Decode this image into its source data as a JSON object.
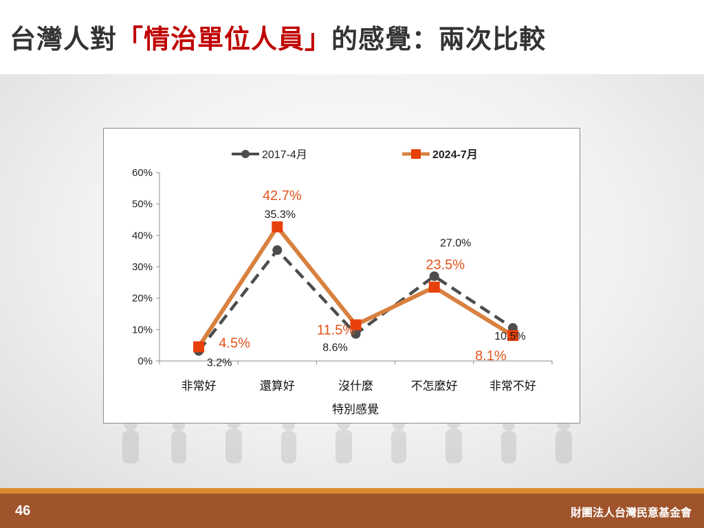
{
  "slide": {
    "title_prefix": "台灣人對",
    "title_highlight": "「情治單位人員」",
    "title_suffix": "的感覺：兩次比較",
    "page_number": "46",
    "organization": "財團法人台灣民意基金會"
  },
  "colors": {
    "title_highlight": "#c00000",
    "series_2017": "#4d4d4d",
    "series_2024_line": "#d8813f",
    "series_2024_marker": "#e8400c",
    "footer": "#a0542c",
    "footer_stripe": "#d98a2b"
  },
  "chart_data": {
    "type": "line",
    "categories": [
      "非常好",
      "還算好",
      "沒什麼",
      "不怎麼好",
      "非常不好"
    ],
    "xlabel": "特別感覺",
    "ylabel": "",
    "ylim": [
      0,
      60
    ],
    "yticks": [
      "0%",
      "10%",
      "20%",
      "30%",
      "40%",
      "50%",
      "60%"
    ],
    "legend_position": "top",
    "grid": false,
    "series": [
      {
        "name": "2017-4月",
        "values": [
          3.2,
          35.3,
          8.6,
          27.0,
          10.5
        ],
        "labels": [
          "3.2%",
          "35.3%",
          "8.6%",
          "27.0%",
          "10.5%"
        ],
        "style": "dashed",
        "marker": "circle"
      },
      {
        "name": "2024-7月",
        "values": [
          4.5,
          42.7,
          11.5,
          23.5,
          8.1
        ],
        "labels": [
          "4.5%",
          "42.7%",
          "11.5%",
          "23.5%",
          "8.1%"
        ],
        "style": "solid",
        "marker": "square"
      }
    ]
  }
}
